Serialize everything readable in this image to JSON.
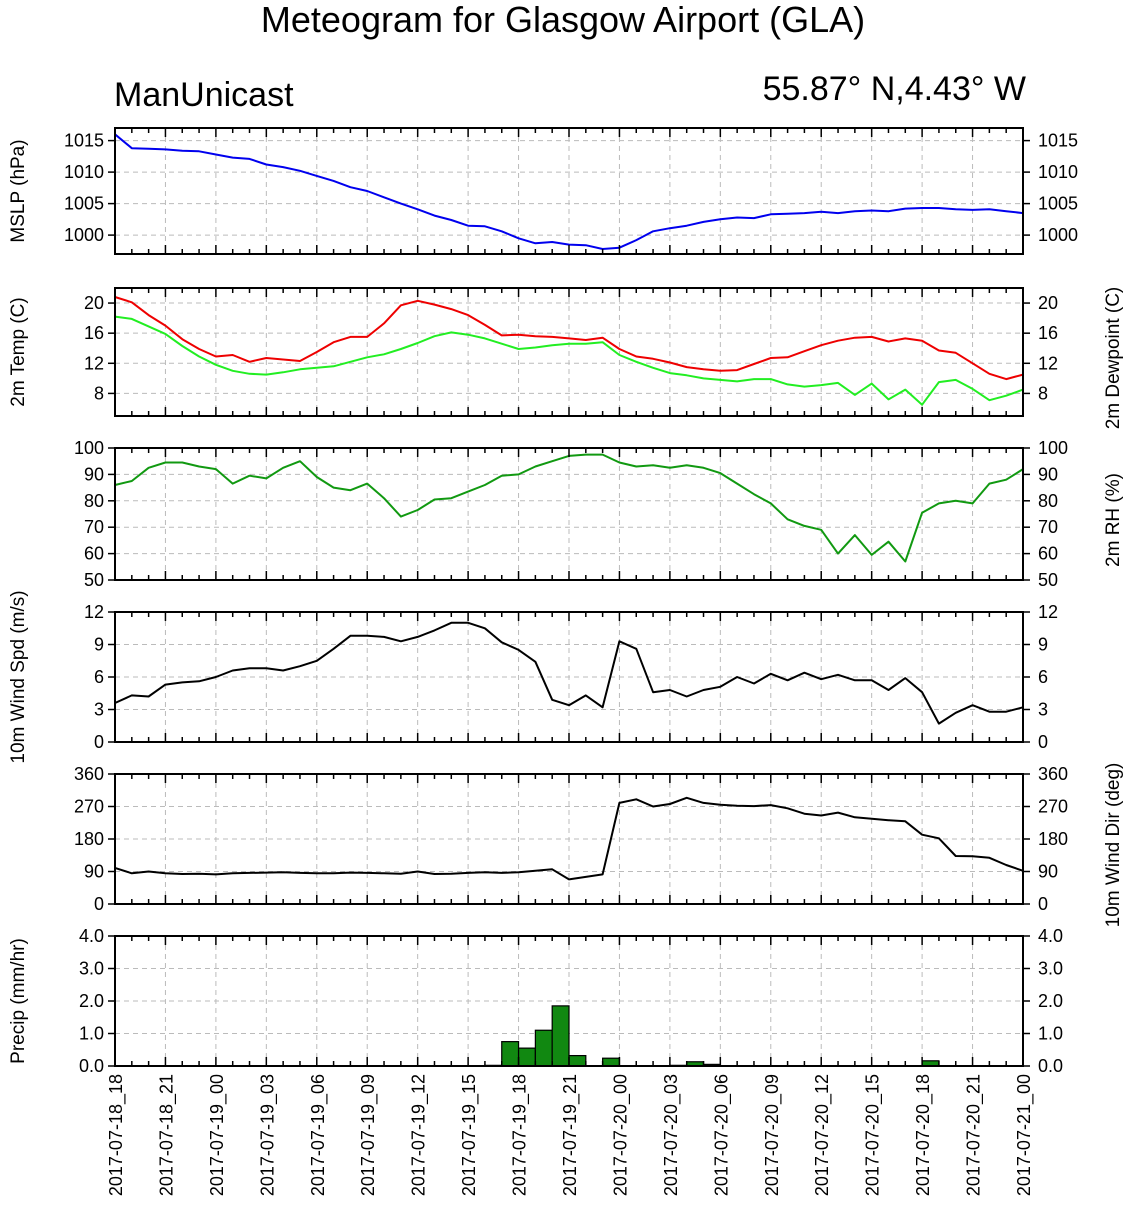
{
  "title": "Meteogram for Glasgow Airport (GLA)",
  "left_string": "ManUnicast",
  "right_string": "55.87° N,4.43° W",
  "x_tick_labels": [
    "2017-07-18_18",
    "2017-07-18_21",
    "2017-07-19_00",
    "2017-07-19_03",
    "2017-07-19_06",
    "2017-07-19_09",
    "2017-07-19_12",
    "2017-07-19_15",
    "2017-07-19_18",
    "2017-07-19_21",
    "2017-07-20_00",
    "2017-07-20_03",
    "2017-07-20_06",
    "2017-07-20_09",
    "2017-07-20_12",
    "2017-07-20_15",
    "2017-07-20_18",
    "2017-07-20_21",
    "2017-07-21_00"
  ],
  "colors": {
    "mslp": "#0000ee",
    "temp": "#ee0000",
    "dewpoint": "#22ee22",
    "rh": "#119911",
    "wind": "#000000",
    "precip_fill": "#118811",
    "grid": "#bbbbbb"
  },
  "chart_data": [
    {
      "type": "line",
      "ylabel": "MSLP (hPa)",
      "ylabel_right": "",
      "yticks": [
        1000,
        1005,
        1010,
        1015
      ],
      "ylim": [
        997,
        1017
      ],
      "grid": true,
      "x_hours": [
        0,
        1,
        2,
        3,
        4,
        5,
        6,
        7,
        8,
        9,
        10,
        11,
        12,
        13,
        14,
        15,
        16,
        17,
        18,
        19,
        20,
        21,
        22,
        23,
        24,
        25,
        26,
        27,
        28,
        29,
        30,
        31,
        32,
        33,
        34,
        35,
        36,
        37,
        38,
        39,
        40,
        41,
        42,
        43,
        44,
        45,
        46,
        47,
        48,
        49,
        50,
        51,
        52,
        53,
        54
      ],
      "series": [
        {
          "values": [
            1016.0,
            1013.8,
            1013.7,
            1013.6,
            1013.4,
            1013.3,
            1012.8,
            1012.3,
            1012.1,
            1011.2,
            1010.8,
            1010.2,
            1009.4,
            1008.6,
            1007.6,
            1007.0,
            1006.0,
            1005.0,
            1004.1,
            1003.1,
            1002.4,
            1001.5,
            1001.4,
            1000.6,
            999.5,
            998.7,
            998.9,
            998.5,
            998.4,
            997.8,
            998.0,
            999.2,
            1000.6,
            1001.1,
            1001.5,
            1002.1,
            1002.5,
            1002.8,
            1002.7,
            1003.3,
            1003.4,
            1003.5,
            1003.7,
            1003.5,
            1003.8,
            1003.9,
            1003.8,
            1004.2,
            1004.3,
            1004.3,
            1004.1,
            1004.0,
            1004.1,
            1003.8,
            1003.5
          ]
        }
      ]
    },
    {
      "type": "line",
      "ylabel": "2m Temp (C)",
      "ylabel_right": "2m Dewpoint (C)",
      "yticks": [
        8,
        12,
        16,
        20
      ],
      "ylim": [
        5,
        22
      ],
      "grid": true,
      "x_hours": [
        0,
        1,
        2,
        3,
        4,
        5,
        6,
        7,
        8,
        9,
        10,
        11,
        12,
        13,
        14,
        15,
        16,
        17,
        18,
        19,
        20,
        21,
        22,
        23,
        24,
        25,
        26,
        27,
        28,
        29,
        30,
        31,
        32,
        33,
        34,
        35,
        36,
        37,
        38,
        39,
        40,
        41,
        42,
        43,
        44,
        45,
        46,
        47,
        48,
        49,
        50,
        51,
        52,
        53,
        54
      ],
      "series": [
        {
          "values": [
            20.8,
            20.1,
            18.4,
            17.0,
            15.2,
            13.9,
            12.9,
            13.1,
            12.2,
            12.7,
            12.5,
            12.3,
            13.5,
            14.8,
            15.5,
            15.5,
            17.3,
            19.7,
            20.3,
            19.8,
            19.2,
            18.4,
            17.1,
            15.7,
            15.8,
            15.6,
            15.5,
            15.3,
            15.1,
            15.4,
            13.9,
            12.9,
            12.6,
            12.1,
            11.5,
            11.2,
            11.0,
            11.1,
            11.9,
            12.7,
            12.8,
            13.6,
            14.4,
            15.0,
            15.4,
            15.5,
            14.9,
            15.3,
            15.0,
            13.7,
            13.4,
            12.0,
            10.6,
            9.9,
            10.5
          ]
        },
        {
          "values": [
            18.2,
            17.9,
            16.9,
            15.9,
            14.3,
            12.9,
            11.8,
            11.0,
            10.6,
            10.5,
            10.8,
            11.2,
            11.4,
            11.6,
            12.2,
            12.8,
            13.2,
            13.9,
            14.7,
            15.6,
            16.1,
            15.8,
            15.3,
            14.6,
            13.9,
            14.1,
            14.4,
            14.6,
            14.6,
            14.8,
            13.1,
            12.2,
            11.4,
            10.7,
            10.4,
            10.0,
            9.8,
            9.6,
            9.9,
            9.9,
            9.2,
            8.9,
            9.1,
            9.4,
            7.8,
            9.3,
            7.2,
            8.5,
            6.5,
            9.5,
            9.8,
            8.6,
            7.1,
            7.7,
            8.5
          ]
        }
      ]
    },
    {
      "type": "line",
      "ylabel": "",
      "ylabel_right": "2m RH (%)",
      "yticks": [
        50,
        60,
        70,
        80,
        90,
        100
      ],
      "ylim": [
        50,
        100
      ],
      "grid": true,
      "x_hours": [
        0,
        1,
        2,
        3,
        4,
        5,
        6,
        7,
        8,
        9,
        10,
        11,
        12,
        13,
        14,
        15,
        16,
        17,
        18,
        19,
        20,
        21,
        22,
        23,
        24,
        25,
        26,
        27,
        28,
        29,
        30,
        31,
        32,
        33,
        34,
        35,
        36,
        37,
        38,
        39,
        40,
        41,
        42,
        43,
        44,
        45,
        46,
        47,
        48,
        49,
        50,
        51,
        52,
        53,
        54
      ],
      "series": [
        {
          "values": [
            86,
            87.5,
            92.5,
            94.5,
            94.5,
            93,
            92,
            86.5,
            89.5,
            88.5,
            92.5,
            95,
            89,
            85,
            84,
            86.5,
            81,
            74,
            76.5,
            80.5,
            81,
            83.5,
            86,
            89.5,
            90,
            93,
            95,
            97,
            97.5,
            97.5,
            94.5,
            93,
            93.5,
            92.5,
            93.5,
            92.5,
            90.5,
            86.5,
            82.5,
            79,
            73,
            70.5,
            69,
            60,
            67,
            59.5,
            64.5,
            57,
            75.5,
            79,
            80,
            79,
            86.5,
            88,
            92
          ]
        }
      ]
    },
    {
      "type": "line",
      "ylabel": "10m Wind Spd (m/s)",
      "ylabel_right": "",
      "yticks": [
        0,
        3,
        6,
        9,
        12
      ],
      "ylim": [
        0,
        12
      ],
      "grid": true,
      "x_hours": [
        0,
        1,
        2,
        3,
        4,
        5,
        6,
        7,
        8,
        9,
        10,
        11,
        12,
        13,
        14,
        15,
        16,
        17,
        18,
        19,
        20,
        21,
        22,
        23,
        24,
        25,
        26,
        27,
        28,
        29,
        30,
        31,
        32,
        33,
        34,
        35,
        36,
        37,
        38,
        39,
        40,
        41,
        42,
        43,
        44,
        45,
        46,
        47,
        48,
        49,
        50,
        51,
        52,
        53,
        54
      ],
      "series": [
        {
          "values": [
            3.6,
            4.3,
            4.2,
            5.3,
            5.5,
            5.6,
            6.0,
            6.6,
            6.8,
            6.8,
            6.6,
            7.0,
            7.5,
            8.6,
            9.8,
            9.8,
            9.7,
            9.3,
            9.7,
            10.3,
            11.0,
            11.0,
            10.5,
            9.2,
            8.5,
            7.4,
            3.9,
            3.4,
            4.3,
            3.2,
            9.3,
            8.6,
            4.6,
            4.8,
            4.2,
            4.8,
            5.1,
            6.0,
            5.4,
            6.3,
            5.7,
            6.4,
            5.8,
            6.2,
            5.7,
            5.7,
            4.8,
            5.9,
            4.6,
            1.7,
            2.7,
            3.4,
            2.8,
            2.8,
            3.2
          ]
        }
      ]
    },
    {
      "type": "line",
      "ylabel": "",
      "ylabel_right": "10m Wind Dir (deg)",
      "yticks": [
        0,
        90,
        180,
        270,
        360
      ],
      "ylim": [
        0,
        360
      ],
      "grid": true,
      "x_hours": [
        0,
        1,
        2,
        3,
        4,
        5,
        6,
        7,
        8,
        9,
        10,
        11,
        12,
        13,
        14,
        15,
        16,
        17,
        18,
        19,
        20,
        21,
        22,
        23,
        24,
        25,
        26,
        27,
        28,
        29,
        30,
        31,
        32,
        33,
        34,
        35,
        36,
        37,
        38,
        39,
        40,
        41,
        42,
        43,
        44,
        45,
        46,
        47,
        48,
        49,
        50,
        51,
        52,
        53,
        54
      ],
      "series": [
        {
          "values": [
            100,
            85,
            90,
            85,
            83,
            84,
            82,
            85,
            86,
            87,
            88,
            86,
            85,
            85,
            87,
            86,
            85,
            84,
            90,
            83,
            84,
            86,
            88,
            86,
            88,
            92,
            96,
            68,
            75,
            82,
            280,
            290,
            270,
            277,
            294,
            280,
            275,
            272,
            271,
            274,
            265,
            250,
            245,
            253,
            240,
            236,
            232,
            229,
            192,
            182,
            133,
            132,
            128,
            108,
            92
          ]
        }
      ]
    },
    {
      "type": "bar",
      "ylabel": "Precip (mm/hr)",
      "ylabel_right": "",
      "yticks": [
        0.0,
        1.0,
        2.0,
        3.0,
        4.0
      ],
      "yticklabels": [
        "0.0",
        "1.0",
        "2.0",
        "3.0",
        "4.0"
      ],
      "ylim": [
        0,
        4
      ],
      "grid": true,
      "x_hours": [
        22,
        23,
        24,
        25,
        26,
        27,
        29,
        33,
        34,
        35,
        48
      ],
      "values": [
        0.02,
        0.75,
        0.55,
        1.1,
        1.85,
        0.32,
        0.24,
        0.02,
        0.13,
        0.05,
        0.16
      ]
    }
  ]
}
